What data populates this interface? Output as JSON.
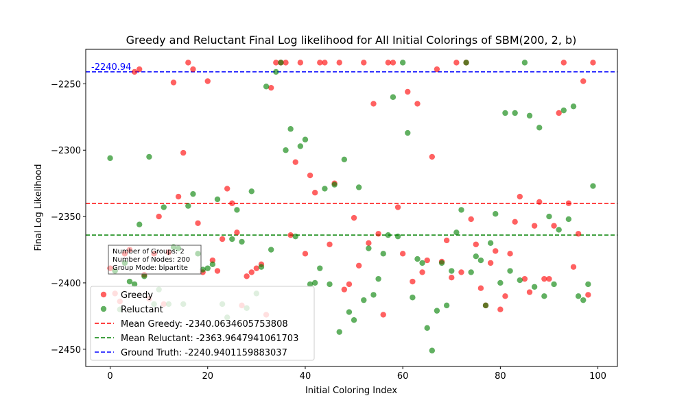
{
  "chart_data": {
    "type": "scatter",
    "title": "Greedy and Reluctant Final Log likelihood for All Initial Colorings of SBM(200, 2, b)",
    "xlabel": "Initial Coloring Index",
    "ylabel": "Final Log Likelihood",
    "xlim": [
      -5,
      104
    ],
    "ylim": [
      -2463,
      -2224
    ],
    "xticks": [
      0,
      20,
      40,
      60,
      80,
      100
    ],
    "yticks": [
      -2450,
      -2400,
      -2350,
      -2300,
      -2250
    ],
    "grid": false,
    "legend_position": "lower-left",
    "series": [
      {
        "name": "Greedy",
        "color": "#ff0000",
        "x": [
          0,
          1,
          2,
          3,
          4,
          5,
          6,
          7,
          8,
          9,
          10,
          11,
          12,
          13,
          14,
          15,
          16,
          17,
          18,
          19,
          20,
          21,
          22,
          23,
          24,
          25,
          26,
          27,
          28,
          29,
          30,
          31,
          32,
          33,
          34,
          35,
          36,
          37,
          38,
          39,
          40,
          41,
          42,
          43,
          44,
          45,
          46,
          47,
          48,
          49,
          50,
          51,
          52,
          53,
          54,
          55,
          56,
          57,
          58,
          59,
          60,
          61,
          62,
          63,
          64,
          65,
          66,
          67,
          68,
          69,
          70,
          71,
          72,
          73,
          74,
          75,
          76,
          77,
          78,
          79,
          80,
          81,
          82,
          83,
          84,
          85,
          86,
          87,
          88,
          89,
          90,
          91,
          92,
          93,
          94,
          95,
          96,
          97,
          98,
          99
        ],
        "y": [
          -2389,
          -2408,
          -2414,
          -2378,
          -2375,
          -2241,
          -2239,
          -2394,
          -2412,
          -2378,
          -2350,
          -2416,
          -2377,
          -2249,
          -2335,
          -2302,
          -2234,
          -2239,
          -2355,
          -2392,
          -2248,
          -2383,
          -2391,
          -2367,
          -2329,
          -2340,
          -2362,
          -2417,
          -2395,
          -2392,
          -2389,
          -2386,
          -2424,
          -2253,
          -2234,
          -2234,
          -2234,
          -2364,
          -2309,
          -2234,
          -2378,
          -2319,
          -2332,
          -2234,
          -2234,
          -2371,
          -2325,
          -2234,
          -2405,
          -2401,
          -2351,
          -2387,
          -2234,
          -2370,
          -2265,
          -2363,
          -2424,
          -2234,
          -2234,
          -2343,
          -2378,
          -2256,
          -2399,
          -2265,
          -2392,
          -2383,
          -2305,
          -2239,
          -2384,
          -2368,
          -2396,
          -2234,
          -2392,
          -2234,
          -2352,
          -2371,
          -2404,
          -2417,
          -2385,
          -2376,
          -2420,
          -2410,
          -2378,
          -2354,
          -2335,
          -2397,
          -2407,
          -2357,
          -2339,
          -2397,
          -2397,
          -2357,
          -2272,
          -2234,
          -2340,
          -2388,
          -2363,
          -2248,
          -2409,
          -2234
        ]
      },
      {
        "name": "Reluctant",
        "color": "#008000",
        "x": [
          0,
          1,
          2,
          3,
          4,
          5,
          6,
          7,
          8,
          9,
          10,
          11,
          12,
          13,
          14,
          15,
          16,
          17,
          18,
          19,
          20,
          21,
          22,
          23,
          24,
          25,
          26,
          27,
          28,
          29,
          30,
          31,
          32,
          33,
          34,
          35,
          36,
          37,
          38,
          39,
          40,
          41,
          42,
          43,
          44,
          45,
          46,
          47,
          48,
          49,
          50,
          51,
          52,
          53,
          54,
          55,
          56,
          57,
          58,
          59,
          60,
          61,
          62,
          63,
          64,
          65,
          66,
          67,
          68,
          69,
          70,
          71,
          72,
          73,
          74,
          75,
          76,
          77,
          78,
          79,
          80,
          81,
          82,
          83,
          84,
          85,
          86,
          87,
          88,
          89,
          90,
          91,
          92,
          93,
          94,
          95,
          96,
          97,
          98,
          99
        ],
        "y": [
          -2306,
          -2391,
          -2420,
          -2385,
          -2399,
          -2401,
          -2356,
          -2395,
          -2305,
          -2416,
          -2405,
          -2343,
          -2416,
          -2373,
          -2374,
          -2416,
          -2342,
          -2333,
          -2378,
          -2390,
          -2389,
          -2386,
          -2337,
          -2416,
          -2426,
          -2367,
          -2345,
          -2369,
          -2419,
          -2331,
          -2408,
          -2388,
          -2252,
          -2375,
          -2241,
          -2234,
          -2300,
          -2284,
          -2365,
          -2297,
          -2292,
          -2401,
          -2400,
          -2389,
          -2329,
          -2401,
          -2326,
          -2437,
          -2307,
          -2422,
          -2428,
          -2328,
          -2413,
          -2374,
          -2409,
          -2397,
          -2378,
          -2364,
          -2260,
          -2365,
          -2234,
          -2287,
          -2411,
          -2382,
          -2385,
          -2434,
          -2451,
          -2421,
          -2385,
          -2417,
          -2391,
          -2362,
          -2345,
          -2234,
          -2392,
          -2380,
          -2383,
          -2417,
          -2370,
          -2348,
          -2400,
          -2272,
          -2391,
          -2272,
          -2398,
          -2234,
          -2274,
          -2403,
          -2283,
          -2410,
          -2350,
          -2401,
          -2360,
          -2270,
          -2352,
          -2267,
          -2410,
          -2413,
          -2401,
          -2327
        ]
      }
    ],
    "reference_lines": [
      {
        "label": "Mean Greedy: -2340.0634605753808",
        "value": -2340.0634605753808,
        "color": "#ff0000"
      },
      {
        "label": "Mean Reluctant: -2363.9647941061703",
        "value": -2363.9647941061703,
        "color": "#008000"
      },
      {
        "label": "Ground Truth: -2240.9401159883037",
        "value": -2240.9401159883037,
        "color": "#0000ff"
      }
    ],
    "ground_truth_annotation": "-2240.94",
    "info_box": [
      "Number of Groups: 2",
      "Number of Nodes: 200",
      "Group Mode: bipartite"
    ]
  }
}
